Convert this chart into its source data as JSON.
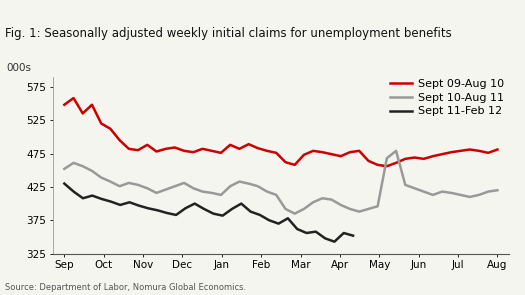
{
  "title": "Fig. 1: Seasonally adjusted weekly initial claims for unemployment benefits",
  "ylabel": "000s",
  "source": "Source: Department of Labor, Nomura Global Economics.",
  "ylim": [
    325,
    590
  ],
  "yticks": [
    325,
    375,
    425,
    475,
    525,
    575
  ],
  "xtick_labels": [
    "Sep",
    "Oct",
    "Nov",
    "Dec",
    "Jan",
    "Feb",
    "Mar",
    "Apr",
    "May",
    "Jun",
    "Jul",
    "Aug"
  ],
  "top_bar_color": "#cc0000",
  "series": {
    "red": {
      "label": "Sept 09-Aug 10",
      "color": "#cc0000",
      "linewidth": 1.8,
      "values": [
        548,
        558,
        535,
        548,
        520,
        512,
        495,
        482,
        480,
        488,
        478,
        482,
        484,
        479,
        477,
        482,
        479,
        476,
        488,
        482,
        489,
        483,
        479,
        476,
        462,
        458,
        473,
        479,
        477,
        474,
        471,
        477,
        479,
        464,
        458,
        456,
        461,
        467,
        469,
        467,
        471,
        474,
        477,
        479,
        481,
        479,
        476,
        481
      ]
    },
    "gray": {
      "label": "Sept 10-Aug 11",
      "color": "#999999",
      "linewidth": 1.8,
      "values": [
        452,
        461,
        456,
        449,
        439,
        433,
        426,
        431,
        428,
        423,
        416,
        421,
        426,
        431,
        423,
        418,
        416,
        413,
        426,
        433,
        430,
        426,
        418,
        413,
        392,
        385,
        392,
        402,
        408,
        406,
        398,
        392,
        388,
        392,
        396,
        468,
        479,
        428,
        423,
        418,
        413,
        418,
        416,
        413,
        410,
        413,
        418,
        420
      ]
    },
    "black": {
      "label": "Sept 11-Feb 12",
      "color": "#222222",
      "linewidth": 1.8,
      "values": [
        430,
        418,
        408,
        412,
        407,
        403,
        398,
        402,
        397,
        393,
        390,
        386,
        383,
        393,
        400,
        392,
        385,
        382,
        392,
        400,
        388,
        383,
        375,
        370,
        378,
        362,
        356,
        358,
        348,
        343,
        356,
        352
      ]
    }
  },
  "n_points": 48,
  "n_black": 32,
  "background_color": "#f5f5f0",
  "title_fontsize": 8.5,
  "tick_fontsize": 7.5,
  "legend_fontsize": 8,
  "figsize": [
    5.25,
    2.95
  ],
  "dpi": 100
}
